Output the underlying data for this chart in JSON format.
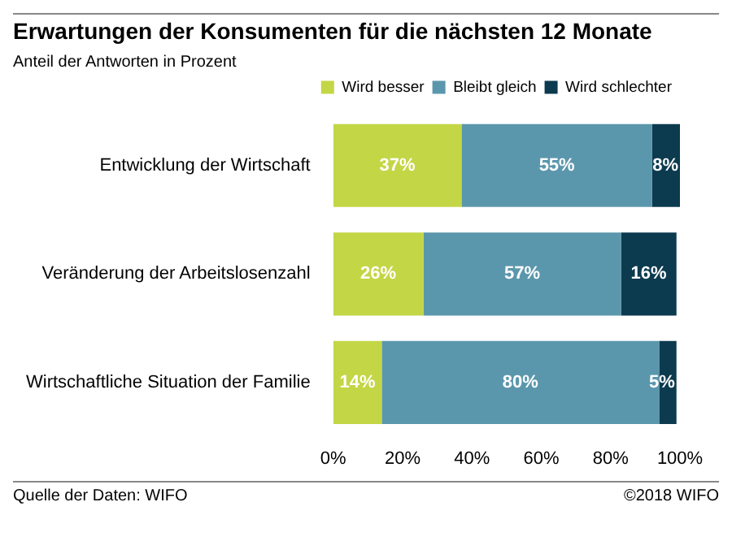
{
  "chart_data": {
    "type": "bar",
    "orientation": "horizontal",
    "stacked": true,
    "title": "Erwartungen der Konsumenten für die nächsten 12 Monate",
    "subtitle": "Anteil der Antworten in Prozent",
    "categories": [
      "Entwicklung der Wirtschaft",
      "Veränderung der Arbeitslosenzahl",
      "Wirtschaftliche Situation der Familie"
    ],
    "series": [
      {
        "name": "Wird besser",
        "color": "#c3d645",
        "values": [
          37,
          26,
          14
        ],
        "value_labels": [
          "37%",
          "26%",
          "14%"
        ]
      },
      {
        "name": "Bleibt gleich",
        "color": "#5b97ac",
        "values": [
          55,
          57,
          80
        ],
        "value_labels": [
          "55%",
          "57%",
          "80%"
        ]
      },
      {
        "name": "Wird schlechter",
        "color": "#0c3a4f",
        "values": [
          8,
          16,
          5
        ],
        "value_labels": [
          "8%",
          "16%",
          "5%"
        ]
      }
    ],
    "xlim": [
      0,
      100
    ],
    "xticks": [
      {
        "value": 0,
        "label": "0%"
      },
      {
        "value": 20,
        "label": "20%"
      },
      {
        "value": 40,
        "label": "40%"
      },
      {
        "value": 60,
        "label": "60%"
      },
      {
        "value": 80,
        "label": "80%"
      },
      {
        "value": 100,
        "label": "100%"
      }
    ],
    "legend": "top right",
    "grid": false,
    "annotations": [
      "Quelle der Daten: WIFO",
      "©2018 WIFO"
    ]
  }
}
